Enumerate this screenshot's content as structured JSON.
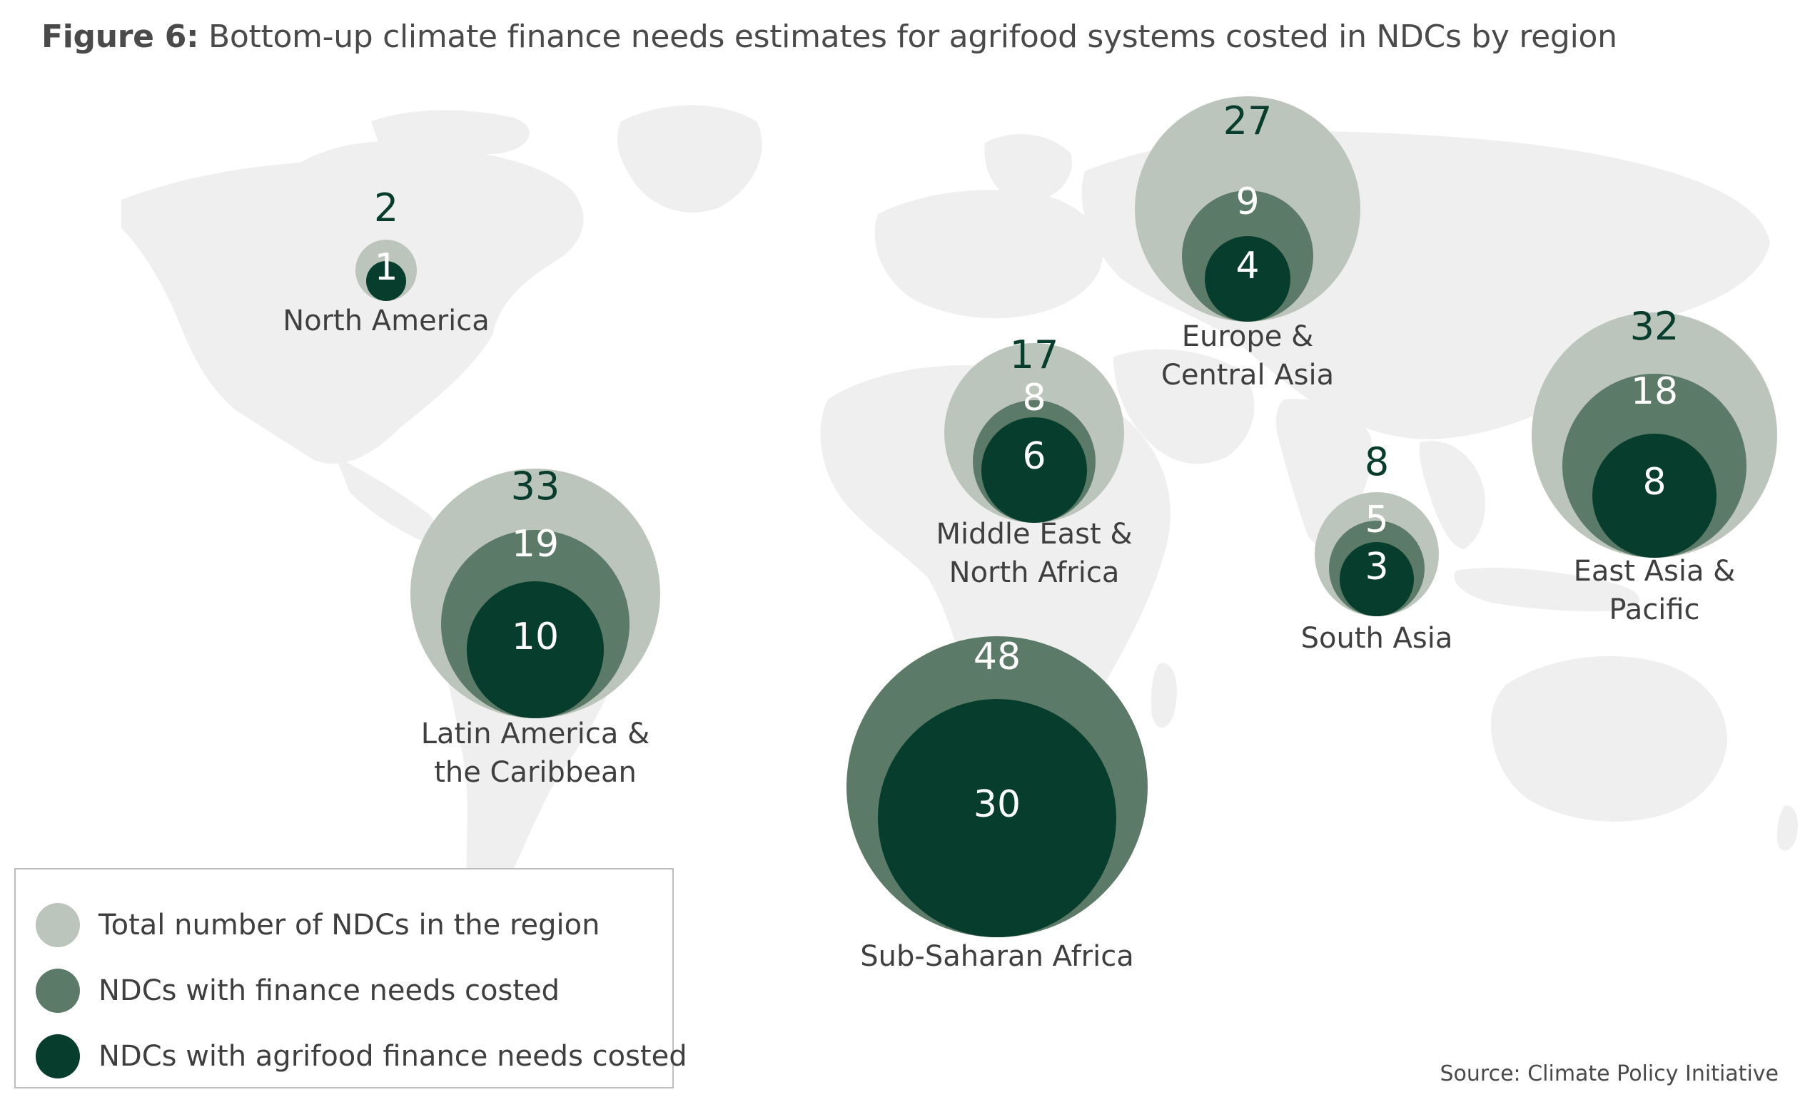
{
  "title": {
    "label": "Figure 6:",
    "text": " Bottom-up climate finance needs estimates for agrifood systems costed in NDCs by region"
  },
  "colors": {
    "total": "#bcc5bb",
    "finance_costed": "#5c7a68",
    "agrifood_costed": "#073d2c",
    "map_land": "#efefef",
    "label_text": "#3f3f3f"
  },
  "chart_data": {
    "type": "bubble-map",
    "series": [
      {
        "name": "Total number of NDCs in the region"
      },
      {
        "name": "NDCs with finance needs costed"
      },
      {
        "name": "NDCs with agrifood finance needs costed"
      }
    ],
    "regions": [
      {
        "name": "North America",
        "name_lines": [
          "North America"
        ],
        "total": 2,
        "finance_costed": null,
        "agrifood_costed": 1
      },
      {
        "name": "Latin America & the Caribbean",
        "name_lines": [
          "Latin America &",
          "the Caribbean"
        ],
        "total": 33,
        "finance_costed": 19,
        "agrifood_costed": 10
      },
      {
        "name": "Middle East & North Africa",
        "name_lines": [
          "Middle East &",
          "North Africa"
        ],
        "total": 17,
        "finance_costed": 8,
        "agrifood_costed": 6
      },
      {
        "name": "Europe & Central Asia",
        "name_lines": [
          "Europe &",
          "Central Asia"
        ],
        "total": 27,
        "finance_costed": 9,
        "agrifood_costed": 4
      },
      {
        "name": "South Asia",
        "name_lines": [
          "South Asia"
        ],
        "total": 8,
        "finance_costed": 5,
        "agrifood_costed": 3
      },
      {
        "name": "East Asia & Pacific",
        "name_lines": [
          "East Asia &",
          "Pacific"
        ],
        "total": 32,
        "finance_costed": 18,
        "agrifood_costed": 8
      },
      {
        "name": "Sub-Saharan Africa",
        "name_lines": [
          "Sub-Saharan Africa"
        ],
        "total": null,
        "finance_costed": 48,
        "agrifood_costed": 30
      }
    ]
  },
  "legend": {
    "items": [
      {
        "label": "Total number of NDCs in the region",
        "key": "total"
      },
      {
        "label": "NDCs with finance needs costed",
        "key": "finance_costed"
      },
      {
        "label": "NDCs with agrifood finance needs costed",
        "key": "agrifood_costed"
      }
    ]
  },
  "source": "Source: Climate Policy Initiative"
}
